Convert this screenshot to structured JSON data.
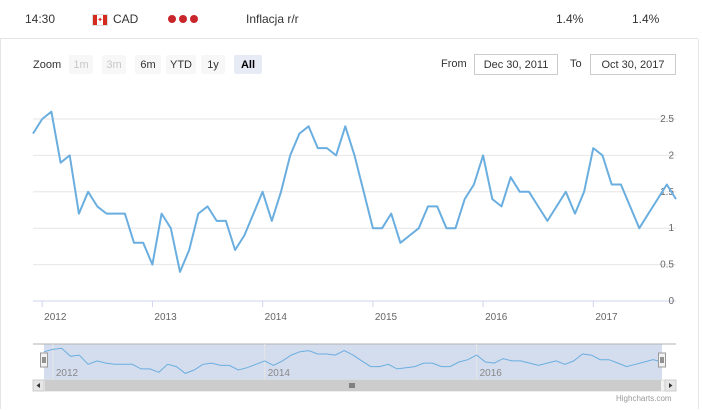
{
  "event_row": {
    "time": "14:30",
    "currency": "CAD",
    "event": "Inflacja r/r",
    "actual": "1.4%",
    "forecast": "1.4%",
    "flag_icon": "canada-flag-icon",
    "importance_icon": "three-dots-importance-icon",
    "importance_color": "#c9262c"
  },
  "range_selector": {
    "zoom_label": "Zoom",
    "buttons": [
      {
        "label": "1m",
        "state": "disabled"
      },
      {
        "label": "3m",
        "state": "disabled"
      },
      {
        "label": "6m",
        "state": "enabled"
      },
      {
        "label": "YTD",
        "state": "enabled"
      },
      {
        "label": "1y",
        "state": "enabled"
      },
      {
        "label": "All",
        "state": "active"
      }
    ],
    "from_label": "From",
    "from_value": "Dec 30, 2011",
    "to_label": "To",
    "to_value": "Oct 30, 2017"
  },
  "chart_data": {
    "type": "line",
    "series": [
      {
        "color": "#6aaee0",
        "x": [
          "2011-12",
          "2012-01",
          "2012-02",
          "2012-03",
          "2012-04",
          "2012-05",
          "2012-06",
          "2012-07",
          "2012-08",
          "2012-09",
          "2012-10",
          "2012-11",
          "2012-12",
          "2013-01",
          "2013-02",
          "2013-03",
          "2013-04",
          "2013-05",
          "2013-06",
          "2013-07",
          "2013-08",
          "2013-09",
          "2013-10",
          "2013-11",
          "2013-12",
          "2014-01",
          "2014-02",
          "2014-03",
          "2014-04",
          "2014-05",
          "2014-06",
          "2014-07",
          "2014-08",
          "2014-09",
          "2014-10",
          "2014-11",
          "2014-12",
          "2015-01",
          "2015-02",
          "2015-03",
          "2015-04",
          "2015-05",
          "2015-06",
          "2015-07",
          "2015-08",
          "2015-09",
          "2015-10",
          "2015-11",
          "2015-12",
          "2016-01",
          "2016-02",
          "2016-03",
          "2016-04",
          "2016-05",
          "2016-06",
          "2016-07",
          "2016-08",
          "2016-09",
          "2016-10",
          "2016-11",
          "2016-12",
          "2017-01",
          "2017-02",
          "2017-03",
          "2017-04",
          "2017-05",
          "2017-06",
          "2017-07",
          "2017-08",
          "2017-09",
          "2017-10"
        ],
        "y": [
          2.3,
          2.5,
          2.6,
          1.9,
          2.0,
          1.2,
          1.5,
          1.3,
          1.2,
          1.2,
          1.2,
          0.8,
          0.8,
          0.5,
          1.2,
          1.0,
          0.4,
          0.7,
          1.2,
          1.3,
          1.1,
          1.1,
          0.7,
          0.9,
          1.2,
          1.5,
          1.1,
          1.5,
          2.0,
          2.3,
          2.4,
          2.1,
          2.1,
          2.0,
          2.4,
          2.0,
          1.5,
          1.0,
          1.0,
          1.2,
          0.8,
          0.9,
          1.0,
          1.3,
          1.3,
          1.0,
          1.0,
          1.4,
          1.6,
          2.0,
          1.4,
          1.3,
          1.7,
          1.5,
          1.5,
          1.3,
          1.1,
          1.3,
          1.5,
          1.2,
          1.5,
          2.1,
          2.0,
          1.6,
          1.6,
          1.3,
          1.0,
          1.2,
          1.4,
          1.6,
          1.4
        ]
      }
    ],
    "x_ticks": [
      "2012",
      "2013",
      "2014",
      "2015",
      "2016",
      "2017"
    ],
    "y_ticks": [
      "2.5",
      "2",
      "1.5",
      "1",
      "0.5",
      "0"
    ],
    "ylim": [
      0,
      2.5
    ],
    "grid": true,
    "navigator": {
      "labels": [
        "2012",
        "2014",
        "2016"
      ],
      "scrollbar_icon": "scrollbar-grip-icon",
      "left_arrow_icon": "scroll-left-arrow-icon",
      "right_arrow_icon": "scroll-right-arrow-icon"
    }
  },
  "credits": "Highcharts.com"
}
